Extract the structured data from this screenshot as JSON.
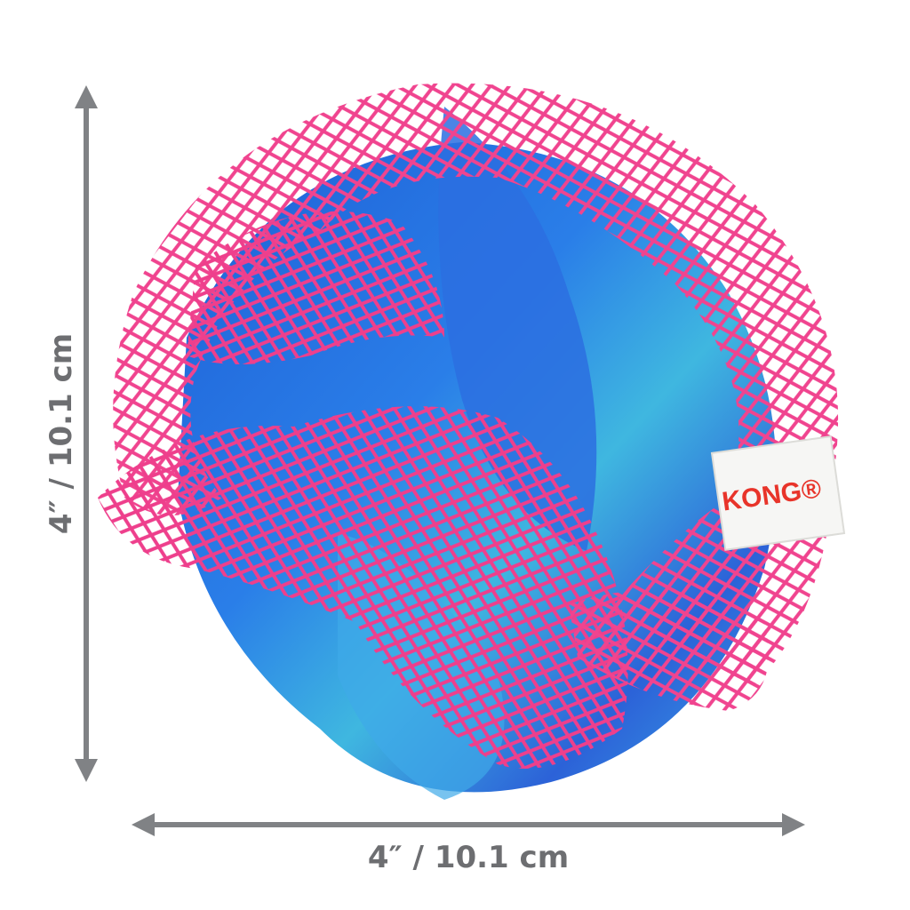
{
  "dimensions": {
    "height": "4″ / 10.1 cm",
    "width": "4″ / 10.1 cm"
  },
  "brand_tag": "KONG®"
}
